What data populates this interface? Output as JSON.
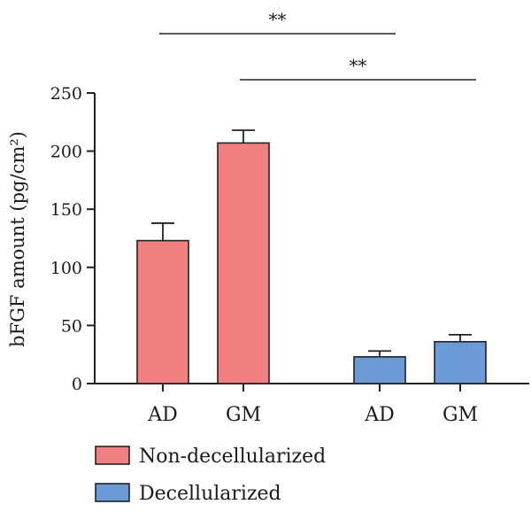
{
  "chart_data": {
    "type": "bar",
    "ylabel": "bFGF amount (pg/cm²)",
    "ylim": [
      0,
      250
    ],
    "yticks": [
      0,
      50,
      100,
      150,
      200,
      250
    ],
    "bars": [
      {
        "category": "AD",
        "group": "Non-decellularized",
        "value": 123,
        "error": 15
      },
      {
        "category": "GM",
        "group": "Non-decellularized",
        "value": 207,
        "error": 11
      },
      {
        "category": "AD",
        "group": "Decellularized",
        "value": 23,
        "error": 5
      },
      {
        "category": "GM",
        "group": "Decellularized",
        "value": 36,
        "error": 6
      }
    ],
    "legend": [
      {
        "label": "Non-decellularized",
        "color": "#f28080"
      },
      {
        "label": "Decellularized",
        "color": "#6a9bd4"
      }
    ],
    "significance": [
      {
        "label": "**",
        "from_bar": 0,
        "to_bar": 2
      },
      {
        "label": "**",
        "from_bar": 1,
        "to_bar": 3
      }
    ],
    "grid": false,
    "legend_position": "bottom-left"
  }
}
